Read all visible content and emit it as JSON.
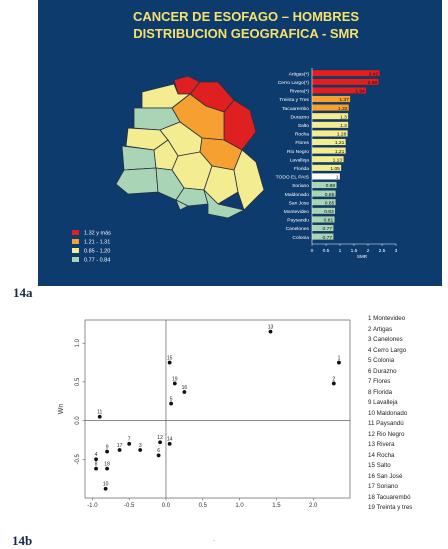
{
  "figure_a": {
    "label": "14a",
    "title_line1": "CANCER DE ESOFAGO – HOMBRES",
    "title_line2": "DISTRIBUCION GEOGRAFICA - SMR",
    "map_legend": [
      {
        "label": "1.32 y más",
        "color": "#e02020"
      },
      {
        "label": "1.21 - 1.31",
        "color": "#f5a030"
      },
      {
        "label": "0.85 - 1.20",
        "color": "#f3ec90"
      },
      {
        "label": "0.77 - 0.84",
        "color": "#a9d5b6"
      }
    ]
  },
  "figure_b": {
    "label": "14b",
    "legend": [
      "1 Montevideo",
      "2 Artigas",
      "3 Canelones",
      "4 Cerro Largo",
      "5 Colonia",
      "6 Durazno",
      "7 Flores",
      "8 Florida",
      "9 Lavalleja",
      "10 Maldonado",
      "11 Paysandú",
      "12 Rio Negro",
      "13 Rivera",
      "14 Rocha",
      "15 Salto",
      "16 San José",
      "17 Soriano",
      "18 Tacuarembó",
      "19 Treinta y tres"
    ],
    "footer_mark": "·"
  },
  "chart_data": [
    {
      "type": "bar",
      "orientation": "horizontal",
      "xlabel": "SMR",
      "xlim": [
        0,
        3
      ],
      "xticks": [
        "0",
        "0.5",
        "1",
        "1.5",
        "2",
        "2.5",
        "3"
      ],
      "categories": [
        "Artigas(*)",
        "Cerro Largo(*)",
        "Rivera(*)",
        "Treinta y Tres",
        "Tacuarembo",
        "Durazno",
        "Salto",
        "Rocha",
        "Flores",
        "Rio Negro",
        "Lavalleja",
        "Florida",
        "TODO EL PAIS",
        "Soriano",
        "Maldonado",
        "San Jose",
        "Montevideo",
        "Paysandu",
        "Canelones",
        "Colonia"
      ],
      "values": [
        2.42,
        2.38,
        1.94,
        1.37,
        1.32,
        1.3,
        1.3,
        1.28,
        1.21,
        1.21,
        1.13,
        1.05,
        1,
        0.88,
        0.85,
        0.85,
        0.83,
        0.81,
        0.77,
        0.77
      ],
      "value_labels": [
        "2.42",
        "2.38",
        "1.94",
        "1.37",
        "1.32",
        "1.3",
        "1.3",
        "1.28",
        "1.21",
        "1.21",
        "1.13",
        "1.05",
        "1",
        "0.88",
        "0.85",
        "0.85",
        "0.83",
        "0.81",
        "0.77",
        "0.77"
      ],
      "bar_colors": [
        "#e02020",
        "#e02020",
        "#e02020",
        "#f5a030",
        "#f5a030",
        "#f3ec90",
        "#f3ec90",
        "#f3ec90",
        "#f3ec90",
        "#f3ec90",
        "#f3ec90",
        "#f3ec90",
        "#ffffff",
        "#a9d5b6",
        "#a9d5b6",
        "#a9d5b6",
        "#a9d5b6",
        "#a9d5b6",
        "#a9d5b6",
        "#a9d5b6"
      ]
    },
    {
      "type": "scatter",
      "ylabel": "Wn",
      "xlim": [
        -1.1,
        2.5
      ],
      "ylim": [
        -1.0,
        1.3
      ],
      "xticks": [
        -1.0,
        -0.5,
        0.0,
        0.5,
        1.0,
        1.5,
        2.0
      ],
      "yticks": [
        -0.5,
        0.0,
        0.5,
        1.0
      ],
      "xtick_labels": [
        "-1.0",
        "-0.5",
        "0.0",
        "0.5",
        "1.0",
        "1.5",
        "2.0"
      ],
      "ytick_labels": [
        "-0.5",
        "0.0",
        "0.5",
        "1.0"
      ],
      "points": [
        {
          "label": "1",
          "x": 2.35,
          "y": 0.75
        },
        {
          "label": "2",
          "x": 2.28,
          "y": 0.48
        },
        {
          "label": "3",
          "x": -0.35,
          "y": -0.38
        },
        {
          "label": "4",
          "x": -0.95,
          "y": -0.5
        },
        {
          "label": "5",
          "x": 0.07,
          "y": 0.22
        },
        {
          "label": "6",
          "x": -0.1,
          "y": -0.45
        },
        {
          "label": "7",
          "x": -0.5,
          "y": -0.3
        },
        {
          "label": "8",
          "x": -0.95,
          "y": -0.62
        },
        {
          "label": "9",
          "x": -0.8,
          "y": -0.4
        },
        {
          "label": "10",
          "x": -0.82,
          "y": -0.88
        },
        {
          "label": "11",
          "x": -0.9,
          "y": 0.05
        },
        {
          "label": "12",
          "x": -0.08,
          "y": -0.28
        },
        {
          "label": "13",
          "x": 1.42,
          "y": 1.15
        },
        {
          "label": "14",
          "x": 0.05,
          "y": -0.3
        },
        {
          "label": "15",
          "x": 0.05,
          "y": 0.75
        },
        {
          "label": "16",
          "x": 0.25,
          "y": 0.37
        },
        {
          "label": "17",
          "x": -0.63,
          "y": -0.38
        },
        {
          "label": "18",
          "x": -0.8,
          "y": -0.62
        },
        {
          "label": "19",
          "x": 0.12,
          "y": 0.48
        }
      ]
    }
  ]
}
